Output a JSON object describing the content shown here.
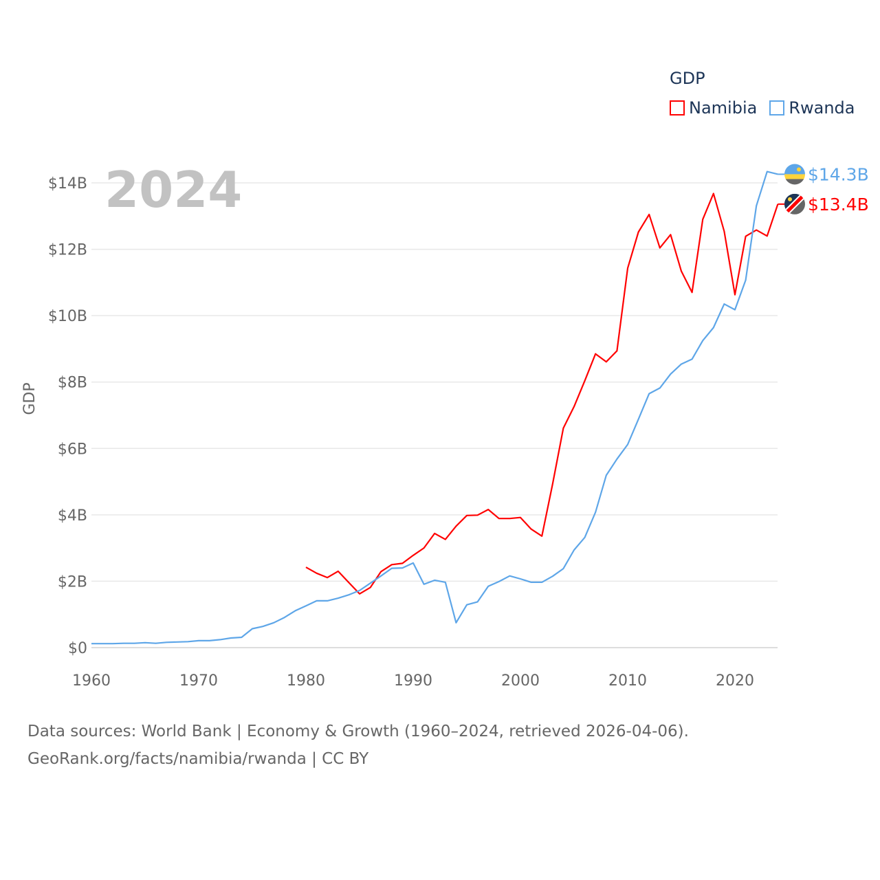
{
  "chart_data": {
    "type": "line",
    "year_label": "2024",
    "ylabel": "GDP",
    "xlim": [
      1960,
      2024
    ],
    "ylim": [
      0,
      14
    ],
    "grid": true,
    "x_ticks": [
      "1960",
      "1970",
      "1980",
      "1990",
      "2000",
      "2010",
      "2020"
    ],
    "y_ticks": [
      {
        "v": 0,
        "label": "$0"
      },
      {
        "v": 2,
        "label": "$2B"
      },
      {
        "v": 4,
        "label": "$4B"
      },
      {
        "v": 6,
        "label": "$6B"
      },
      {
        "v": 8,
        "label": "$8B"
      },
      {
        "v": 10,
        "label": "$10B"
      },
      {
        "v": 12,
        "label": "$12B"
      },
      {
        "v": 14,
        "label": "$14B"
      }
    ],
    "legend": {
      "title": "GDP",
      "placement": "top-right"
    },
    "series": [
      {
        "name": "Namibia",
        "color": "#ff0000",
        "end_label": "$13.4B",
        "start_year": 1980,
        "values": [
          2.42,
          2.24,
          2.11,
          2.3,
          1.96,
          1.62,
          1.81,
          2.29,
          2.5,
          2.54,
          2.78,
          3.0,
          3.44,
          3.26,
          3.66,
          3.98,
          3.99,
          4.16,
          3.89,
          3.89,
          3.92,
          3.57,
          3.36,
          4.93,
          6.61,
          7.26,
          8.04,
          8.85,
          8.61,
          8.94,
          11.43,
          12.52,
          13.05,
          12.04,
          12.44,
          11.34,
          10.7,
          12.9,
          13.68,
          12.54,
          10.63,
          12.39,
          12.58,
          12.4,
          13.36
        ]
      },
      {
        "name": "Rwanda",
        "color": "#5ea6e8",
        "end_label": "$14.3B",
        "start_year": 1960,
        "values": [
          0.12,
          0.12,
          0.12,
          0.13,
          0.13,
          0.15,
          0.13,
          0.16,
          0.17,
          0.18,
          0.21,
          0.21,
          0.24,
          0.29,
          0.31,
          0.57,
          0.64,
          0.75,
          0.91,
          1.11,
          1.26,
          1.41,
          1.41,
          1.49,
          1.59,
          1.72,
          1.94,
          2.16,
          2.39,
          2.4,
          2.55,
          1.91,
          2.03,
          1.97,
          0.75,
          1.29,
          1.38,
          1.85,
          1.99,
          2.16,
          2.07,
          1.97,
          1.97,
          2.15,
          2.38,
          2.94,
          3.32,
          4.08,
          5.19,
          5.68,
          6.12,
          6.88,
          7.65,
          7.82,
          8.24,
          8.54,
          8.69,
          9.25,
          9.64,
          10.35,
          10.18,
          11.07,
          13.31,
          14.34,
          14.26
        ]
      }
    ]
  },
  "footer": {
    "line1": "Data sources: World Bank | Economy & Growth (1960–2024, retrieved 2026-04-06).",
    "line2": "GeoRank.org/facts/namibia/rwanda | CC BY"
  }
}
